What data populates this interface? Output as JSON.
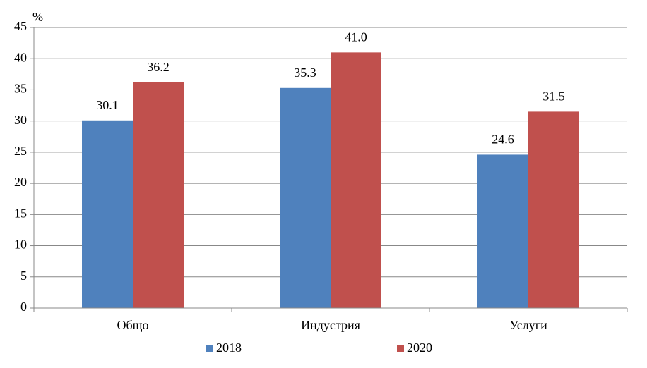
{
  "chart_data": {
    "type": "bar",
    "y_label": "%",
    "categories": [
      "Общо",
      "Индустрия",
      "Услуги"
    ],
    "series": [
      {
        "name": "2018",
        "color": "#4f81bd",
        "values": [
          30.1,
          35.3,
          24.6
        ],
        "value_labels": [
          "30.1",
          "35.3",
          "24.6"
        ]
      },
      {
        "name": "2020",
        "color": "#c0504d",
        "values": [
          36.2,
          41,
          31.5
        ],
        "value_labels": [
          "36.2",
          "41.0",
          "31.5"
        ]
      }
    ],
    "ylim": [
      0,
      45
    ],
    "yticks": [
      0,
      5,
      10,
      15,
      20,
      25,
      30,
      35,
      40,
      45
    ],
    "grid": true,
    "legend": "bottom"
  }
}
